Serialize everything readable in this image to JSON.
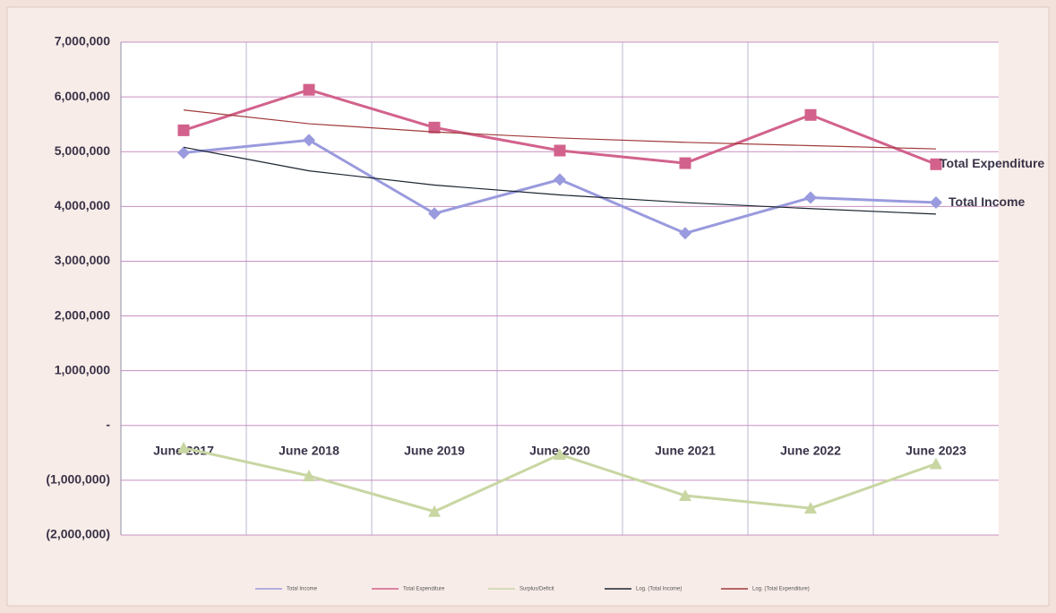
{
  "chart_data": {
    "type": "line",
    "categories": [
      "June 2017",
      "June 2018",
      "June 2019",
      "June 2020",
      "June 2021",
      "June 2022",
      "June 2023"
    ],
    "series": [
      {
        "name": "Total Income",
        "color": "#9a9ade",
        "marker": "diamond",
        "values": [
          4980000,
          5210000,
          3870000,
          4490000,
          3510000,
          4160000,
          4070000
        ]
      },
      {
        "name": "Total Expenditure",
        "color": "#d2628c",
        "marker": "square",
        "values": [
          5390000,
          6130000,
          5440000,
          5020000,
          4790000,
          5670000,
          4770000
        ]
      },
      {
        "name": "Surplus/Deficit",
        "color": "#c8d6a2",
        "marker": "triangle",
        "values": [
          -410000,
          -920000,
          -1570000,
          -530000,
          -1280000,
          -1510000,
          -700000
        ]
      },
      {
        "name": "Log. (Total Income)",
        "color": "#1c2430",
        "marker": "none",
        "values": [
          5080000,
          4650000,
          4390000,
          4210000,
          4070000,
          3960000,
          3860000
        ]
      },
      {
        "name": "Log. (Total Expenditure)",
        "color": "#a03a3a",
        "marker": "none",
        "values": [
          5760000,
          5510000,
          5360000,
          5250000,
          5170000,
          5110000,
          5050000
        ]
      }
    ],
    "ylim": [
      -2000000,
      7000000
    ],
    "yticks": [
      {
        "value": -2000000,
        "label": "(2,000,000)"
      },
      {
        "value": -1000000,
        "label": "(1,000,000)"
      },
      {
        "value": 0,
        "label": "-"
      },
      {
        "value": 1000000,
        "label": "1,000,000"
      },
      {
        "value": 2000000,
        "label": "2,000,000"
      },
      {
        "value": 3000000,
        "label": "3,000,000"
      },
      {
        "value": 4000000,
        "label": "4,000,000"
      },
      {
        "value": 5000000,
        "label": "5,000,000"
      },
      {
        "value": 6000000,
        "label": "6,000,000"
      },
      {
        "value": 7000000,
        "label": "7,000,000"
      }
    ],
    "grid": true,
    "legend": "bottom"
  }
}
